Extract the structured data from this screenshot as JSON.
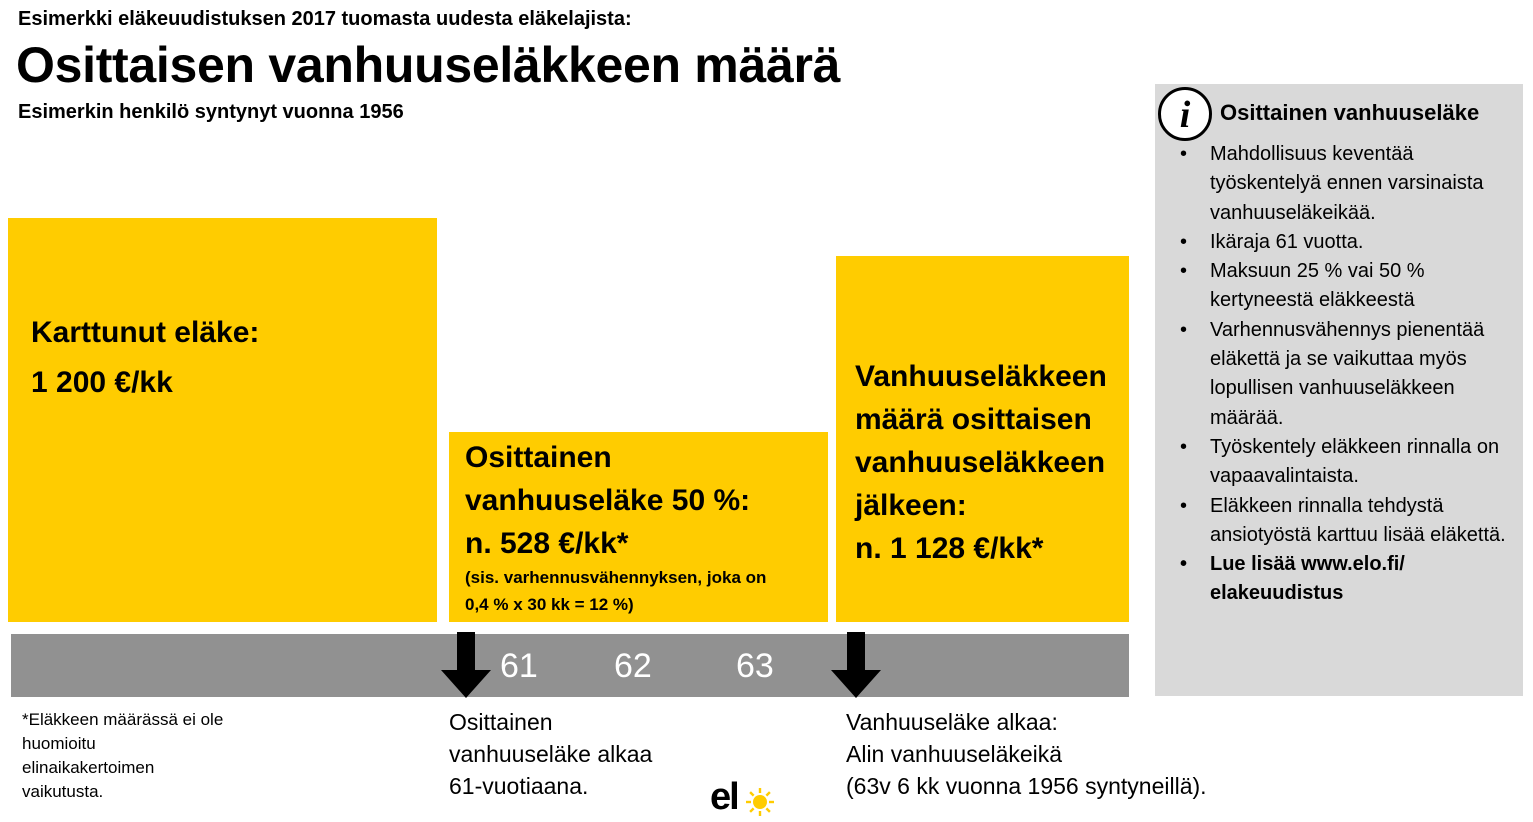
{
  "header": {
    "kicker": "Esimerkki  eläkeuudistuksen 2017 tuomasta uudesta eläkelajista:",
    "title": "Osittaisen vanhuuseläkkeen määrä",
    "subtitle": "Esimerkin henkilö syntynyt vuonna 1956"
  },
  "boxes": {
    "accrued": {
      "label": "Karttunut eläke:",
      "amount": "1 200 €/kk"
    },
    "partial": {
      "line1": "Osittainen",
      "line2": "vanhuuseläke 50 %:",
      "amount": "n. 528 €/kk*",
      "note1": "(sis. varhennusvähennyksen, joka on",
      "note2": "0,4 % x 30 kk = 12 %)"
    },
    "oldage": {
      "line1": "Vanhuuseläkkeen",
      "line2": "määrä osittaisen",
      "line3": "vanhuuseläkkeen",
      "line4": "jälkeen:",
      "amount": "n. 1 128 €/kk*"
    }
  },
  "timeline": {
    "ages": [
      "61",
      "62",
      "63"
    ]
  },
  "footnote": {
    "line1": "*Eläkkeen määrässä ei ole",
    "line2": "huomioitu",
    "line3": "elinaikakertoimen",
    "line4": "vaikutusta."
  },
  "captions": {
    "partial": {
      "line1": "Osittainen",
      "line2": "vanhuuseläke alkaa",
      "line3": "61-vuotiaana."
    },
    "oldage": {
      "line1": "Vanhuuseläke alkaa:",
      "line2": "Alin vanhuuseläkeikä",
      "line3": "(63v 6 kk vuonna 1956 syntyneillä)."
    }
  },
  "info": {
    "icon": "info-icon",
    "title": "Osittainen vanhuuseläke",
    "items": [
      "Mahdollisuus keventää työskentelyä ennen varsinaista vanhuuseläkeikää.",
      "Ikäraja 61 vuotta.",
      "Maksuun 25 % vai 50 % kertyneestä eläkkeestä",
      "Varhennusvähennys pienentää eläkettä ja se vaikuttaa myös lopullisen vanhuuseläkkeen määrää.",
      "Työskentely eläkkeen rinnalla on vapaavalintaista.",
      "Eläkkeen rinnalla tehdystä ansiotyöstä karttuu lisää eläkettä.",
      "Lue lisää www.elo.fi/ elakeuudistus"
    ]
  },
  "logo": {
    "text": "el"
  },
  "colors": {
    "yellow": "#ffcc00",
    "timeline_gray": "#919191",
    "info_gray": "#d9d9d9"
  }
}
